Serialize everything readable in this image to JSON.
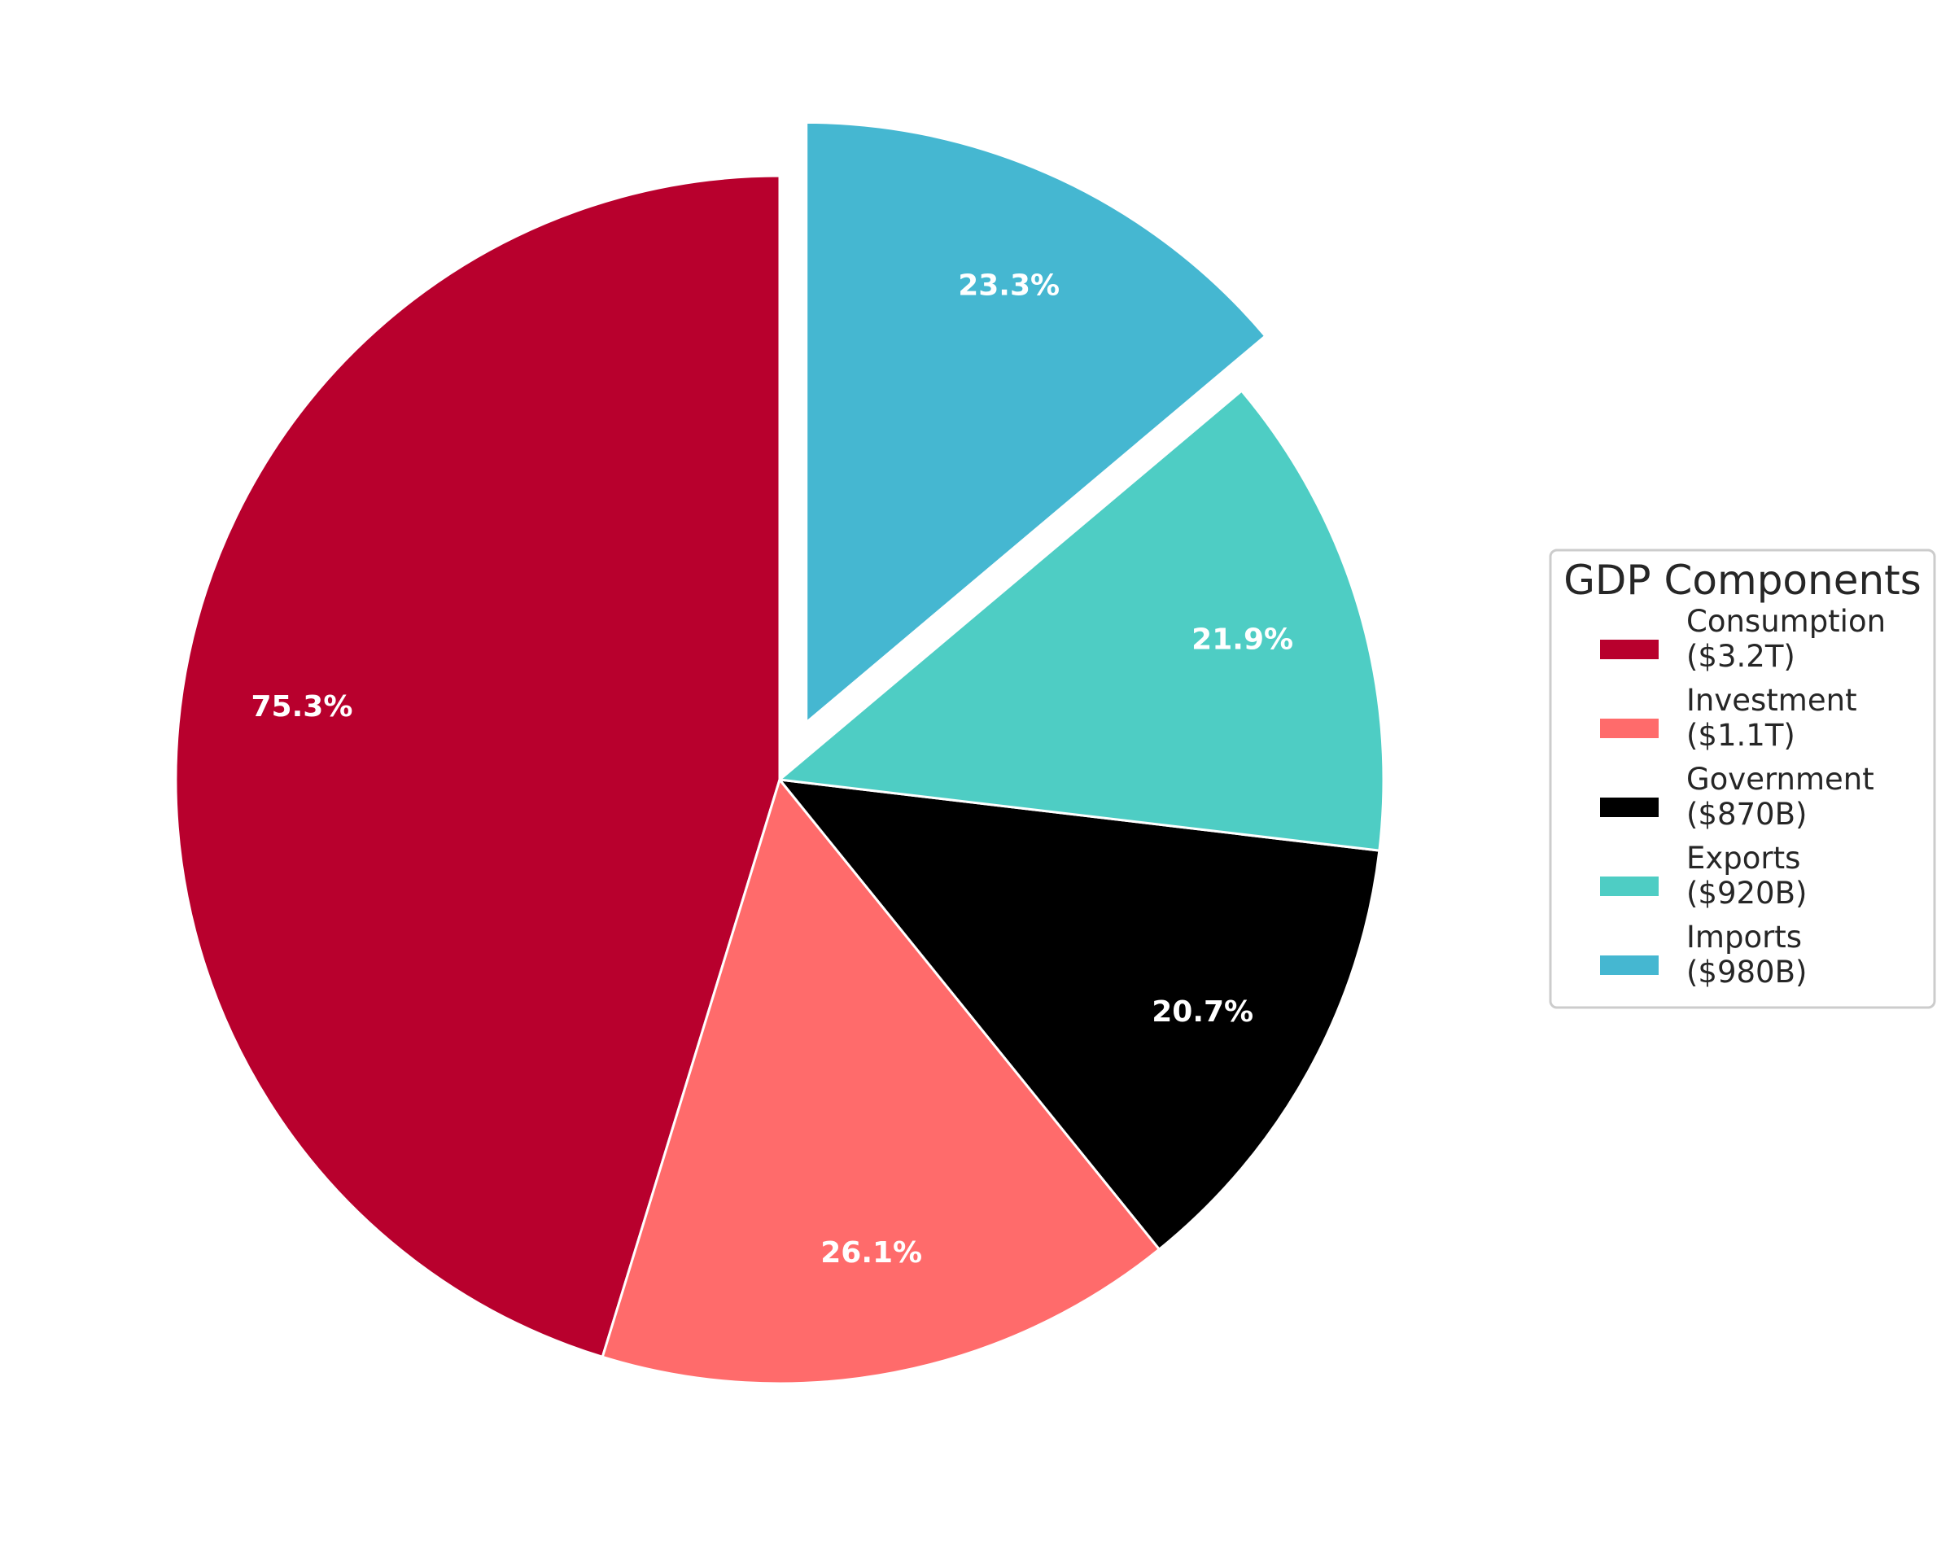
{
  "chart_data": {
    "type": "pie",
    "categories": [
      "Consumption",
      "Investment",
      "Government",
      "Exports",
      "Imports"
    ],
    "values_label": [
      "$3.2T",
      "$1.1T",
      "$870B",
      "$920B",
      "$980B"
    ],
    "percent_labels": [
      "75.3%",
      "26.1%",
      "20.7%",
      "21.9%",
      "23.3%"
    ],
    "slice_fractions": [
      0.4512,
      0.1551,
      0.1227,
      0.1297,
      0.1382
    ],
    "colors": [
      "#b8002d",
      "#ff6b6b",
      "#000000",
      "#4ecdc4",
      "#45b7d1"
    ],
    "exploded": [
      false,
      false,
      false,
      false,
      true
    ],
    "start_angle_deg": 90,
    "direction": "counterclockwise",
    "legend": {
      "title": "GDP Components",
      "placement": "center-right",
      "entries": [
        {
          "name": "Consumption",
          "value": "($3.2T)"
        },
        {
          "name": "Investment",
          "value": "($1.1T)"
        },
        {
          "name": "Government",
          "value": "($870B)"
        },
        {
          "name": "Exports",
          "value": "($920B)"
        },
        {
          "name": "Imports",
          "value": "($980B)"
        }
      ]
    }
  }
}
